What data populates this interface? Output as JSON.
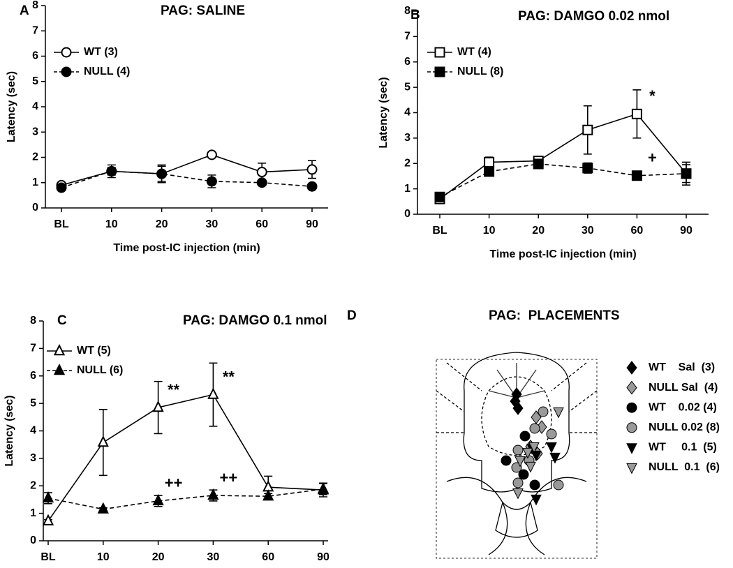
{
  "chart_data": [
    {
      "type": "line",
      "panel": "A",
      "title": "PAG: SALINE",
      "xlabel": "Time post-IC injection (min)",
      "ylabel": "Latency (sec)",
      "categories": [
        "BL",
        "10",
        "20",
        "30",
        "60",
        "90"
      ],
      "ylim": [
        0,
        8
      ],
      "yticks": [
        0,
        1,
        2,
        3,
        4,
        5,
        6,
        7,
        8
      ],
      "series": [
        {
          "name": "WT (3)",
          "color": "#000000",
          "marker": "circle",
          "filled": false,
          "dashed": false,
          "values": [
            0.9,
            1.45,
            1.35,
            2.1,
            1.42,
            1.52
          ],
          "errors": [
            0.05,
            0.25,
            0.3,
            0.1,
            0.35,
            0.35
          ]
        },
        {
          "name": "NULL (4)",
          "color": "#000000",
          "marker": "circle",
          "filled": true,
          "dashed": true,
          "values": [
            0.8,
            1.45,
            1.35,
            1.05,
            1.0,
            0.85
          ],
          "errors": [
            0.05,
            0.15,
            0.35,
            0.25,
            0.05,
            0.05
          ]
        }
      ]
    },
    {
      "type": "line",
      "panel": "B",
      "title": "PAG: DAMGO 0.02 nmol",
      "xlabel": "Time post-IC injection (min)",
      "ylabel": "Latency (sec)",
      "categories": [
        "BL",
        "10",
        "20",
        "30",
        "60",
        "90"
      ],
      "ylim": [
        0,
        8
      ],
      "yticks": [
        0,
        1,
        2,
        3,
        4,
        5,
        6,
        7,
        8
      ],
      "series": [
        {
          "name": "WT (4)",
          "color": "#000000",
          "marker": "square",
          "filled": false,
          "dashed": false,
          "values": [
            0.6,
            2.05,
            2.1,
            3.32,
            3.95,
            1.6
          ],
          "errors": [
            0.15,
            0.2,
            0.15,
            0.95,
            0.95,
            0.35
          ],
          "annotations": [
            null,
            null,
            null,
            null,
            "*",
            null
          ]
        },
        {
          "name": "NULL (8)",
          "color": "#000000",
          "marker": "square",
          "filled": true,
          "dashed": true,
          "values": [
            0.68,
            1.68,
            1.98,
            1.82,
            1.52,
            1.6
          ],
          "errors": [
            0.1,
            0.15,
            0.15,
            0.2,
            0.1,
            0.45
          ],
          "annotations": [
            null,
            null,
            null,
            null,
            "+",
            null
          ]
        }
      ]
    },
    {
      "type": "line",
      "panel": "C",
      "title": "PAG: DAMGO 0.1 nmol",
      "xlabel": "Time post-IC injection (min)",
      "ylabel": "Latency (sec)",
      "categories": [
        "BL",
        "10",
        "20",
        "30",
        "60",
        "90"
      ],
      "ylim": [
        0,
        8
      ],
      "yticks": [
        0,
        1,
        2,
        3,
        4,
        5,
        6,
        7,
        8
      ],
      "series": [
        {
          "name": "WT (5)",
          "color": "#000000",
          "marker": "triangle",
          "filled": false,
          "dashed": false,
          "values": [
            0.72,
            3.58,
            4.85,
            5.32,
            1.95,
            1.85
          ],
          "errors": [
            0.05,
            1.2,
            0.95,
            1.15,
            0.4,
            0.25
          ],
          "annotations": [
            null,
            null,
            "**",
            "**",
            null,
            null
          ]
        },
        {
          "name": "NULL (6)",
          "color": "#000000",
          "marker": "triangle",
          "filled": true,
          "dashed": true,
          "values": [
            1.55,
            1.15,
            1.45,
            1.65,
            1.62,
            1.88
          ],
          "errors": [
            0.2,
            0.05,
            0.2,
            0.2,
            0.1,
            0.2
          ],
          "annotations": [
            null,
            null,
            "++",
            "++",
            null,
            null
          ]
        }
      ]
    },
    {
      "type": "placements",
      "panel": "D",
      "title": "PAG:  PLACEMENTS",
      "series": [
        {
          "name": "WT    Sal  (3)",
          "color": "#000000",
          "marker": "diamond"
        },
        {
          "name": "NULL Sal  (4)",
          "color": "#999999",
          "marker": "diamond"
        },
        {
          "name": "WT    0.02 (4)",
          "color": "#000000",
          "marker": "circle"
        },
        {
          "name": "NULL 0.02 (8)",
          "color": "#999999",
          "marker": "circle"
        },
        {
          "name": "WT     0.1  (5)",
          "color": "#000000",
          "marker": "triangle-down"
        },
        {
          "name": "NULL  0.1  (6)",
          "color": "#999999",
          "marker": "triangle-down"
        }
      ]
    }
  ]
}
